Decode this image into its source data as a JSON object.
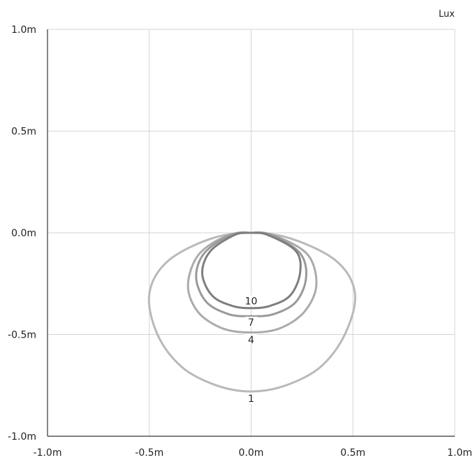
{
  "chart_data": {
    "type": "contour",
    "unit_label": "Lux",
    "x_ticks": [
      "-1.0m",
      "-0.5m",
      "0.0m",
      "0.5m",
      "1.0m"
    ],
    "y_ticks": [
      "1.0m",
      "0.5m",
      "0.0m",
      "-0.5m",
      "-1.0m"
    ],
    "xlim": [
      -1.0,
      1.0
    ],
    "ylim": [
      -1.0,
      1.0
    ],
    "grid": true,
    "contours": [
      {
        "level": "1",
        "color": "#b9b9b9",
        "points": [
          [
            0.0,
            0.0
          ],
          [
            -0.2,
            -0.03
          ],
          [
            -0.41,
            -0.14
          ],
          [
            -0.5,
            -0.3
          ],
          [
            -0.46,
            -0.5
          ],
          [
            -0.34,
            -0.66
          ],
          [
            -0.17,
            -0.75
          ],
          [
            0.0,
            -0.78
          ],
          [
            0.17,
            -0.75
          ],
          [
            0.34,
            -0.66
          ],
          [
            0.46,
            -0.5
          ],
          [
            0.51,
            -0.3
          ],
          [
            0.42,
            -0.14
          ],
          [
            0.2,
            -0.03
          ]
        ]
      },
      {
        "level": "4",
        "color": "#ababab",
        "points": [
          [
            0.0,
            0.0
          ],
          [
            -0.13,
            -0.02
          ],
          [
            -0.26,
            -0.11
          ],
          [
            -0.31,
            -0.26
          ],
          [
            -0.26,
            -0.39
          ],
          [
            -0.14,
            -0.47
          ],
          [
            0.0,
            -0.49
          ],
          [
            0.14,
            -0.47
          ],
          [
            0.26,
            -0.39
          ],
          [
            0.32,
            -0.26
          ],
          [
            0.28,
            -0.11
          ],
          [
            0.13,
            -0.02
          ]
        ]
      },
      {
        "level": "7",
        "color": "#999999",
        "points": [
          [
            0.0,
            0.0
          ],
          [
            -0.1,
            -0.01
          ],
          [
            -0.23,
            -0.1
          ],
          [
            -0.27,
            -0.22
          ],
          [
            -0.22,
            -0.34
          ],
          [
            -0.11,
            -0.4
          ],
          [
            0.0,
            -0.41
          ],
          [
            0.11,
            -0.4
          ],
          [
            0.22,
            -0.34
          ],
          [
            0.27,
            -0.22
          ],
          [
            0.24,
            -0.1
          ],
          [
            0.1,
            -0.01
          ]
        ]
      },
      {
        "level": "10",
        "color": "#7e7e7e",
        "points": [
          [
            0.0,
            0.0
          ],
          [
            -0.08,
            -0.01
          ],
          [
            -0.2,
            -0.09
          ],
          [
            -0.24,
            -0.2
          ],
          [
            -0.19,
            -0.31
          ],
          [
            -0.09,
            -0.36
          ],
          [
            0.0,
            -0.37
          ],
          [
            0.09,
            -0.36
          ],
          [
            0.19,
            -0.31
          ],
          [
            0.24,
            -0.2
          ],
          [
            0.22,
            -0.09
          ],
          [
            0.08,
            -0.01
          ]
        ]
      }
    ],
    "contour_label_positions": [
      {
        "level": "10",
        "x": 0.0,
        "y": -0.335
      },
      {
        "level": "7",
        "x": 0.0,
        "y": -0.44
      },
      {
        "level": "4",
        "x": 0.0,
        "y": -0.525
      },
      {
        "level": "1",
        "x": 0.0,
        "y": -0.815
      }
    ]
  }
}
